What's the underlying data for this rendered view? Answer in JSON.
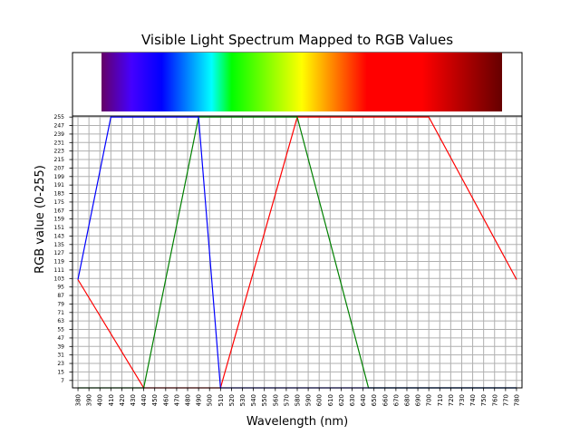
{
  "chart_data": {
    "type": "line",
    "title": "Visible Light Spectrum Mapped to RGB Values",
    "xlabel": "Wavelength (nm)",
    "ylabel": "RGB value (0-255)",
    "xlim": [
      375,
      785
    ],
    "ylim": [
      0,
      256
    ],
    "grid": true,
    "legend": "none",
    "x_ticks": [
      380,
      390,
      400,
      410,
      420,
      430,
      440,
      450,
      460,
      470,
      480,
      490,
      500,
      510,
      520,
      530,
      540,
      550,
      560,
      570,
      580,
      590,
      600,
      610,
      620,
      630,
      640,
      650,
      660,
      670,
      680,
      690,
      700,
      710,
      720,
      730,
      740,
      750,
      760,
      770,
      780
    ],
    "y_ticks": [
      7,
      15,
      23,
      31,
      39,
      47,
      55,
      63,
      71,
      79,
      87,
      95,
      103,
      111,
      119,
      127,
      135,
      143,
      151,
      159,
      167,
      175,
      183,
      191,
      199,
      207,
      215,
      223,
      231,
      239,
      247,
      255
    ],
    "series": [
      {
        "color": "#ff0000",
        "x": [
          380,
          440,
          510,
          580,
          700,
          780
        ],
        "y": [
          102,
          0,
          0,
          255,
          255,
          102
        ]
      },
      {
        "color": "#008000",
        "x": [
          380,
          440,
          490,
          580,
          645,
          780
        ],
        "y": [
          0,
          0,
          255,
          255,
          0,
          0
        ]
      },
      {
        "color": "#0000ff",
        "x": [
          380,
          410,
          490,
          510,
          780
        ],
        "y": [
          102,
          255,
          255,
          0,
          0
        ]
      }
    ],
    "spectrum_band": {
      "x_range": [
        380,
        780
      ],
      "stops": [
        {
          "x": 380,
          "color": "#660066"
        },
        {
          "x": 410,
          "color": "#4400ff"
        },
        {
          "x": 440,
          "color": "#0000ff"
        },
        {
          "x": 490,
          "color": "#00ffff"
        },
        {
          "x": 510,
          "color": "#00ff00"
        },
        {
          "x": 580,
          "color": "#ffff00"
        },
        {
          "x": 645,
          "color": "#ff0000"
        },
        {
          "x": 700,
          "color": "#ff0000"
        },
        {
          "x": 780,
          "color": "#660000"
        }
      ]
    }
  }
}
